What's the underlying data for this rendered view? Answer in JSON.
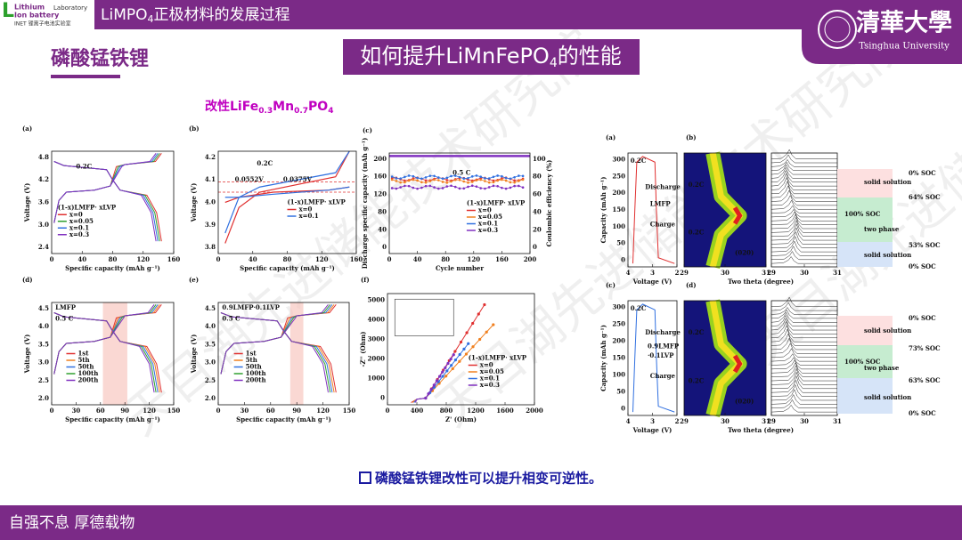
{
  "header": {
    "logo": {
      "line1": "Lithium",
      "line2": "Ion battery",
      "line3": "Laboratory",
      "line4": "INET 锂离子电池实验室"
    },
    "title": {
      "main": "LiMPO",
      "sub": "4",
      "rest": "正极材料的发展过程"
    },
    "university": {
      "name_cn": "清華大學",
      "name_en": "Tsinghua University"
    }
  },
  "section": "磷酸锰铁锂",
  "heading": {
    "main": "如何提升LiMnFePO",
    "sub": "4",
    "rest": "的性能"
  },
  "subtitle": {
    "parts": [
      "改性LiFe",
      "0.3",
      "Mn",
      "0.7",
      "PO",
      "4"
    ]
  },
  "panels": [
    {
      "label": "(a)",
      "xlabel": "Specific capacity (mAh g⁻¹)",
      "ylabel": "Voltage (V)",
      "xticks": [
        "0",
        "40",
        "80",
        "120",
        "160"
      ],
      "yticks": [
        "4.8",
        "4.2",
        "3.6",
        "3.0",
        "2.4"
      ],
      "notes": [
        "0.2C"
      ],
      "legend_title": "(1-x)LMFP· xLVP",
      "legend": [
        "x=0",
        "x=0.05",
        "x=0.1",
        "x=0.3"
      ]
    },
    {
      "label": "(b)",
      "xlabel": "Specific capacity (mAh g⁻¹)",
      "ylabel": "Voltage (V)",
      "xticks": [
        "0",
        "40",
        "80",
        "120",
        "160"
      ],
      "yticks": [
        "4.2",
        "4.1",
        "4.0",
        "3.9",
        "3.8"
      ],
      "notes": [
        "0.2C",
        "0.0552V",
        "0.0375V"
      ],
      "legend_title": "(1-x)LMFP· xLVP",
      "legend": [
        "x=0",
        "x=0.1"
      ]
    },
    {
      "label": "(c)",
      "xlabel": "Cycle number",
      "ylabel": "Discharge specific capacity (mAh g⁻¹)",
      "y2label": "Coulombic efficiency (%)",
      "xticks": [
        "0",
        "40",
        "80",
        "120",
        "160",
        "200"
      ],
      "yticks": [
        "200",
        "160",
        "120",
        "80",
        "40",
        "0"
      ],
      "y2ticks": [
        "100",
        "80",
        "60",
        "40",
        "20",
        "0"
      ],
      "notes": [
        "0.5 C"
      ],
      "legend_title": "(1-x)LMFP· xLVP",
      "legend": [
        "x=0",
        "x=0.05",
        "x=0.1",
        "x=0.3"
      ]
    },
    {
      "label": "(d)",
      "xlabel": "Specific capacity (mAh g⁻¹)",
      "ylabel": "Voltage (V)",
      "xticks": [
        "0",
        "30",
        "60",
        "90",
        "120",
        "150"
      ],
      "yticks": [
        "4.5",
        "4.0",
        "3.5",
        "3.0",
        "2.5",
        "2.0"
      ],
      "notes": [
        "LMFP",
        "0.5 C"
      ],
      "legend": [
        "1st",
        "5th",
        "50th",
        "100th",
        "200th"
      ]
    },
    {
      "label": "(e)",
      "xlabel": "Specific capacity (mAh g⁻¹)",
      "ylabel": "Voltage (V)",
      "xticks": [
        "0",
        "30",
        "60",
        "90",
        "120",
        "150"
      ],
      "yticks": [
        "4.5",
        "4.0",
        "3.5",
        "3.0",
        "2.5",
        "2.0"
      ],
      "notes": [
        "0.9LMFP·0.1LVP",
        "0.5 C"
      ],
      "legend": [
        "1st",
        "5th",
        "50th",
        "100th",
        "200th"
      ]
    },
    {
      "label": "(f)",
      "xlabel": "Z' (Ohm)",
      "ylabel": "-Z'' (Ohm)",
      "xticks": [
        "0",
        "400",
        "800",
        "1200",
        "1600",
        "2000"
      ],
      "yticks": [
        "5000",
        "4000",
        "3000",
        "2000",
        "1000",
        "0"
      ],
      "legend_title": "(1-x)LMFP· xLVP",
      "legend": [
        "x=0",
        "x=0.05",
        "x=0.1",
        "x=0.3"
      ]
    },
    {
      "label": "(a)",
      "xlabel": "Voltage (V)",
      "ylabel": "Capacity (mAh g⁻¹)",
      "xticks": [
        "4",
        "3",
        "2"
      ],
      "yticks": [
        "300",
        "250",
        "200",
        "150",
        "100",
        "50",
        "0"
      ],
      "notes": [
        "0.2C",
        "Discharge",
        "LMFP",
        "Charge"
      ]
    },
    {
      "label": "(b)",
      "xlabel": "Two theta (degree)",
      "xticks": [
        "29",
        "30",
        "31"
      ],
      "notes": [
        "0.2C",
        "0.2C",
        "(020)"
      ]
    },
    {
      "xticks": [
        "29",
        "30",
        "31"
      ]
    },
    {
      "label": "(c)",
      "xlabel": "Voltage (V)",
      "ylabel": "Capacity (mAh g⁻¹)",
      "xticks": [
        "4",
        "3",
        "2"
      ],
      "yticks": [
        "300",
        "250",
        "200",
        "150",
        "100",
        "50",
        "0"
      ],
      "notes": [
        "0.2C",
        "Discharge",
        "0.9LMFP",
        "·0.1LVP",
        "Charge"
      ]
    },
    {
      "label": "(d)",
      "xlabel": "Two theta (degree)",
      "xticks": [
        "29",
        "30",
        "31"
      ],
      "notes": [
        "0.2C",
        "0.2C",
        "(020)"
      ]
    },
    {
      "xticks": [
        "29",
        "30",
        "31"
      ]
    }
  ],
  "soc_top": [
    "0% SOC",
    "solid solution",
    "64% SOC",
    "100% SOC",
    "two phase",
    "53% SOC",
    "solid solution",
    "0% SOC"
  ],
  "soc_bottom": [
    "0% SOC",
    "solid solution",
    "73% SOC",
    "100% SOC",
    "two phase",
    "63% SOC",
    "solid solution",
    "0% SOC"
  ],
  "conclusion": "磷酸锰铁锂改性可以提升相变可逆性。",
  "footer": "自强不息 厚德载物",
  "watermark": "天目湖先进储能技术研究院"
}
